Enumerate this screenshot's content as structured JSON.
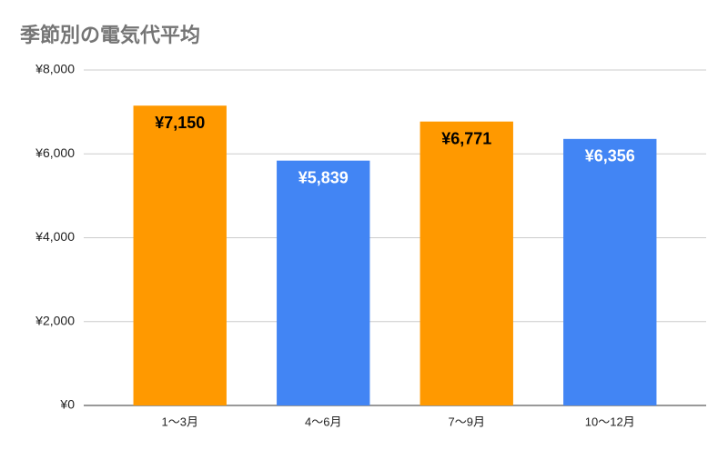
{
  "chart_data": {
    "type": "bar",
    "title": "季節別の電気代平均",
    "categories": [
      "1〜3月",
      "4〜6月",
      "7〜9月",
      "10〜12月"
    ],
    "values": [
      7150,
      5839,
      6771,
      6356
    ],
    "value_labels": [
      "¥7,150",
      "¥5,839",
      "¥6,771",
      "¥6,356"
    ],
    "colors": [
      "#ff9900",
      "#4285f4",
      "#ff9900",
      "#4285f4"
    ],
    "value_label_colors": [
      "#000000",
      "#ffffff",
      "#000000",
      "#ffffff"
    ],
    "ylim": [
      0,
      8000
    ],
    "yticks": [
      {
        "value": 0,
        "label": "¥0"
      },
      {
        "value": 2000,
        "label": "¥2,000"
      },
      {
        "value": 4000,
        "label": "¥4,000"
      },
      {
        "value": 6000,
        "label": "¥6,000"
      },
      {
        "value": 8000,
        "label": "¥8,000"
      }
    ],
    "grid": true
  }
}
